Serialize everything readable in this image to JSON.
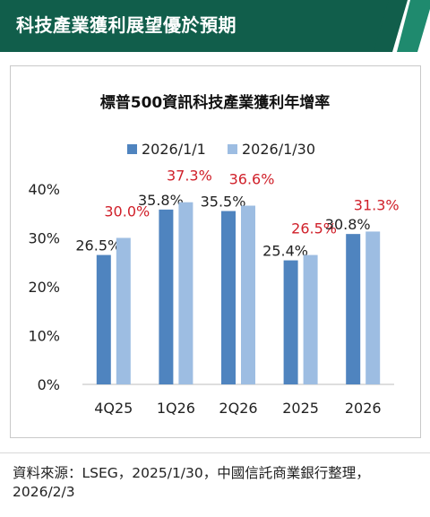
{
  "header": {
    "title": "科技產業獲利展望優於預期"
  },
  "chart_data": {
    "type": "bar",
    "title": "標普500資訊科技產業獲利年增率",
    "categories": [
      "4Q25",
      "1Q26",
      "2Q26",
      "2025",
      "2026"
    ],
    "series": [
      {
        "name": "2026/1/1",
        "values": [
          26.5,
          35.8,
          35.5,
          25.4,
          30.8
        ],
        "labels": [
          "26.5%",
          "35.8%",
          "35.5%",
          "25.4%",
          "30.8%"
        ],
        "color": "#4f84bf",
        "label_color": "#222222"
      },
      {
        "name": "2026/1/30",
        "values": [
          30.0,
          37.3,
          36.6,
          26.5,
          31.3
        ],
        "labels": [
          "30.0%",
          "37.3%",
          "36.6%",
          "26.5%",
          "31.3%"
        ],
        "color": "#9dbde2",
        "label_color": "#d0202a"
      }
    ],
    "yticks": [
      {
        "value": 0,
        "label": "0%"
      },
      {
        "value": 10,
        "label": "10%"
      },
      {
        "value": 20,
        "label": "20%"
      },
      {
        "value": 30,
        "label": "30%"
      },
      {
        "value": 40,
        "label": "40%"
      }
    ],
    "ylim": [
      0,
      40
    ],
    "grid": false,
    "legend_position": "top"
  },
  "footer": {
    "source": "資料來源：LSEG，2025/1/30，中國信託商業銀行整理，2026/2/3"
  },
  "colors": {
    "header_bg": "#115e4b",
    "header_stripe": "#1f8a6e"
  }
}
